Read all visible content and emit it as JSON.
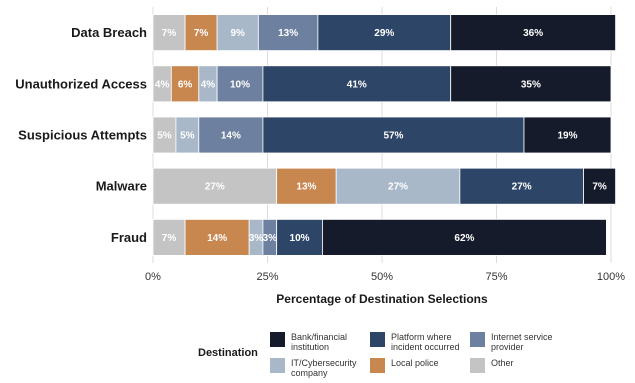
{
  "chart_data": {
    "type": "bar",
    "orientation": "horizontal",
    "stacked": true,
    "categories": [
      "Data Breach",
      "Unauthorized Access",
      "Suspicious Attempts",
      "Malware",
      "Fraud"
    ],
    "series": [
      {
        "name": "Other",
        "color": "#c4c4c4",
        "values": [
          7,
          4,
          5,
          27,
          7
        ]
      },
      {
        "name": "Local police",
        "color": "#c8874f",
        "values": [
          7,
          6,
          0,
          13,
          14
        ]
      },
      {
        "name": "IT/Cybersecurity company",
        "color": "#a9b8c8",
        "values": [
          9,
          4,
          5,
          27,
          3
        ]
      },
      {
        "name": "Internet service provider",
        "color": "#6e809f",
        "values": [
          13,
          10,
          14,
          0,
          3
        ]
      },
      {
        "name": "Platform where incident occurred",
        "color": "#2d4567",
        "values": [
          29,
          41,
          57,
          27,
          10
        ]
      },
      {
        "name": "Bank/financial institution",
        "color": "#151b2b",
        "values": [
          36,
          35,
          19,
          7,
          62
        ]
      }
    ],
    "segment_labels": [
      [
        "7%",
        "7%",
        "9%",
        "13%",
        "29%",
        "36%"
      ],
      [
        "4%",
        "6%",
        "4%",
        "10%",
        "41%",
        "35%"
      ],
      [
        "5%",
        "",
        "5%",
        "14%",
        "57%",
        "19%"
      ],
      [
        "27%",
        "13%",
        "27%",
        "",
        "27%",
        "7%"
      ],
      [
        "7%",
        "14%",
        "3%",
        "3%",
        "10%",
        "62%"
      ]
    ],
    "xlim": [
      0,
      100
    ],
    "xticks": [
      0,
      25,
      50,
      75,
      100
    ],
    "xtick_labels": [
      "0%",
      "25%",
      "50%",
      "75%",
      "100%"
    ],
    "xlabel": "Percentage of Destination Selections",
    "grid": true,
    "legend": {
      "title": "Destination",
      "placement": "bottom",
      "order": [
        "Bank/financial institution",
        "Platform where incident occurred",
        "Internet service provider",
        "IT/Cybersecurity company",
        "Local police",
        "Other"
      ]
    }
  }
}
